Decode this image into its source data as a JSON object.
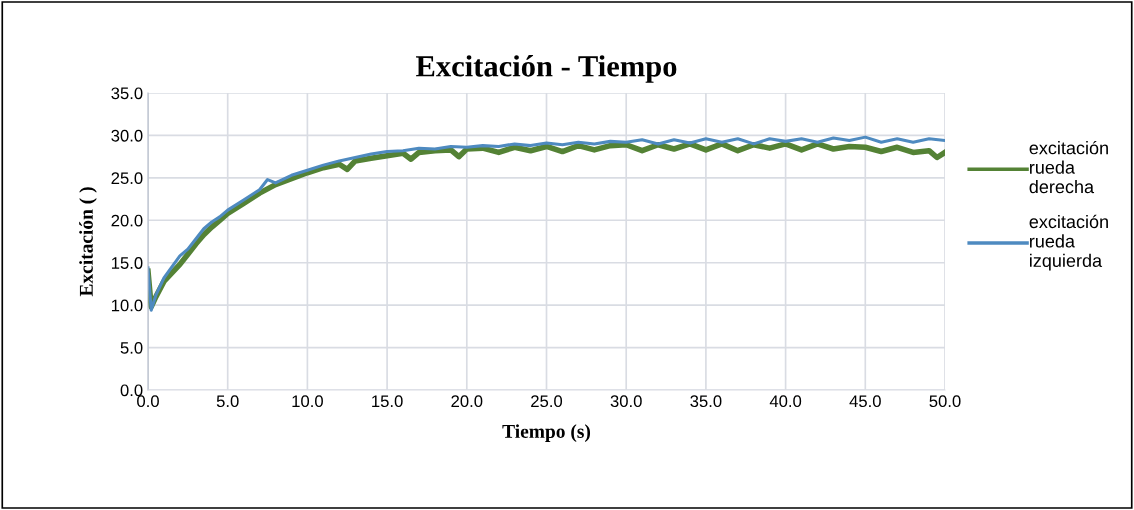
{
  "chart_data": {
    "type": "line",
    "title": "Excitación - Tiempo",
    "xlabel": "Tiempo (s)",
    "ylabel": "Excitación ( )",
    "xlim": [
      0,
      50
    ],
    "xticks": [
      {
        "value": 0,
        "label": "0.0"
      },
      {
        "value": 5,
        "label": "5.0"
      },
      {
        "value": 10,
        "label": "10.0"
      },
      {
        "value": 15,
        "label": "15.0"
      },
      {
        "value": 20,
        "label": "20.0"
      },
      {
        "value": 25,
        "label": "25.0"
      },
      {
        "value": 30,
        "label": "30.0"
      },
      {
        "value": 35,
        "label": "35.0"
      },
      {
        "value": 40,
        "label": "40.0"
      },
      {
        "value": 45,
        "label": "45.0"
      },
      {
        "value": 50,
        "label": "50.0"
      }
    ],
    "ylim": [
      0,
      35
    ],
    "yticks": [
      {
        "value": 0,
        "label": "0.0"
      },
      {
        "value": 5,
        "label": "5.0"
      },
      {
        "value": 10,
        "label": "10.0"
      },
      {
        "value": 15,
        "label": "15.0"
      },
      {
        "value": 20,
        "label": "20.0"
      },
      {
        "value": 25,
        "label": "25.0"
      },
      {
        "value": 30,
        "label": "30.0"
      },
      {
        "value": 35,
        "label": "35.0"
      }
    ],
    "grid": true,
    "legend": "right",
    "marker": "none",
    "line_style": "solid",
    "series": [
      {
        "name": "excitación rueda derecha",
        "color": "#548235",
        "x": [
          0,
          0.2,
          0.5,
          1,
          1.5,
          2,
          2.5,
          3,
          3.5,
          4,
          4.5,
          5,
          6,
          7,
          8,
          9,
          10,
          11,
          12,
          12.5,
          13,
          14,
          15,
          16,
          16.5,
          17,
          18,
          19,
          19.5,
          20,
          21,
          22,
          23,
          24,
          25,
          26,
          27,
          28,
          29,
          30,
          31,
          32,
          33,
          34,
          35,
          36,
          37,
          38,
          39,
          40,
          41,
          42,
          43,
          44,
          45,
          46,
          47,
          48,
          49,
          49.5,
          50
        ],
        "values": [
          14.0,
          9.8,
          11.0,
          12.8,
          13.8,
          14.8,
          16.0,
          17.2,
          18.3,
          19.2,
          20.0,
          20.8,
          22.0,
          23.2,
          24.2,
          24.9,
          25.6,
          26.2,
          26.6,
          26.0,
          27.0,
          27.3,
          27.6,
          27.9,
          27.2,
          28.0,
          28.2,
          28.3,
          27.5,
          28.4,
          28.5,
          28.0,
          28.6,
          28.2,
          28.7,
          28.1,
          28.8,
          28.3,
          28.8,
          28.9,
          28.2,
          28.9,
          28.4,
          29.0,
          28.3,
          29.0,
          28.2,
          28.9,
          28.5,
          29.0,
          28.3,
          29.0,
          28.4,
          28.7,
          28.6,
          28.1,
          28.6,
          28.0,
          28.2,
          27.4,
          28.0
        ]
      },
      {
        "name": "excitación rueda izquierda",
        "color": "#4e8ac0",
        "x": [
          0,
          0.2,
          0.5,
          1,
          1.5,
          2,
          2.5,
          3,
          3.5,
          4,
          4.5,
          5,
          6,
          7,
          7.5,
          8,
          9,
          10,
          11,
          12,
          13,
          14,
          15,
          16,
          17,
          18,
          19,
          20,
          21,
          22,
          23,
          24,
          25,
          26,
          27,
          28,
          29,
          30,
          31,
          32,
          33,
          34,
          35,
          36,
          37,
          38,
          39,
          40,
          41,
          42,
          43,
          44,
          45,
          46,
          47,
          48,
          49,
          50
        ],
        "values": [
          14.4,
          9.4,
          11.2,
          13.2,
          14.5,
          15.8,
          16.6,
          17.8,
          19.0,
          19.8,
          20.4,
          21.2,
          22.4,
          23.6,
          24.8,
          24.4,
          25.3,
          25.9,
          26.5,
          27.0,
          27.4,
          27.8,
          28.1,
          28.2,
          28.5,
          28.4,
          28.7,
          28.6,
          28.8,
          28.7,
          29.0,
          28.8,
          29.1,
          28.9,
          29.2,
          29.0,
          29.3,
          29.2,
          29.5,
          29.0,
          29.5,
          29.1,
          29.6,
          29.2,
          29.6,
          29.0,
          29.6,
          29.3,
          29.6,
          29.2,
          29.7,
          29.4,
          29.8,
          29.2,
          29.6,
          29.2,
          29.6,
          29.4
        ]
      }
    ]
  }
}
